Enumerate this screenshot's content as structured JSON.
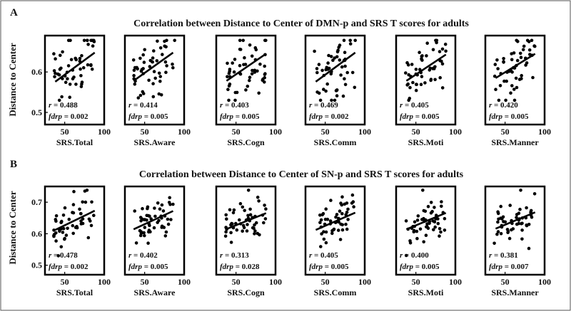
{
  "chart_data": [
    {
      "panel": "A",
      "type": "scatter",
      "title": "Correlation between Distance to Center of DMN-p and SRS T scores for adults",
      "ylabel": "Distance to Center",
      "ylim": [
        0.47,
        0.69
      ],
      "yticks": [
        0.5,
        0.6
      ],
      "xlim": [
        25,
        100
      ],
      "xticks": [
        50,
        100
      ],
      "subplots": [
        {
          "xlabel": "SRS.Total",
          "r_label": "r",
          "r_value": "= 0.488",
          "fdrp_label": "fdrp",
          "fdrp_value": "= 0.002",
          "fit": {
            "x": [
              38,
              88
            ],
            "y": [
              0.576,
              0.648
            ]
          }
        },
        {
          "xlabel": "SRS.Aware",
          "r_label": "r",
          "r_value": "= 0.414",
          "fdrp_label": "fdrp",
          "fdrp_value": "= 0.005",
          "fit": {
            "x": [
              36,
              86
            ],
            "y": [
              0.578,
              0.648
            ]
          }
        },
        {
          "xlabel": "SRS.Cogn",
          "r_label": "r",
          "r_value": "= 0.403",
          "fdrp_label": "fdrp",
          "fdrp_value": "= 0.005",
          "fit": {
            "x": [
              38,
              88
            ],
            "y": [
              0.578,
              0.645
            ]
          }
        },
        {
          "xlabel": "SRS.Comm",
          "r_label": "r",
          "r_value": "= 0.469",
          "fdrp_label": "fdrp",
          "fdrp_value": "= 0.002",
          "fit": {
            "x": [
              38,
              88
            ],
            "y": [
              0.576,
              0.648
            ]
          }
        },
        {
          "xlabel": "SRS.Moti",
          "r_label": "r",
          "r_value": "= 0.405",
          "fdrp_label": "fdrp",
          "fdrp_value": "= 0.005",
          "fit": {
            "x": [
              38,
              88
            ],
            "y": [
              0.578,
              0.643
            ]
          }
        },
        {
          "xlabel": "SRS.Manner",
          "r_label": "r",
          "r_value": "= 0.420",
          "fdrp_label": "fdrp",
          "fdrp_value": "= 0.005",
          "fit": {
            "x": [
              38,
              88
            ],
            "y": [
              0.585,
              0.645
            ]
          }
        }
      ]
    },
    {
      "panel": "B",
      "type": "scatter",
      "title": "Correlation between Distance to Center of SN-p and SRS T scores for adults",
      "ylabel": "Distance to Center",
      "ylim": [
        0.47,
        0.75
      ],
      "yticks": [
        0.5,
        0.6,
        0.7
      ],
      "xlim": [
        25,
        100
      ],
      "xticks": [
        50,
        100
      ],
      "subplots": [
        {
          "xlabel": "SRS.Total",
          "r_label": "r",
          "r_value": "= 0.478",
          "fdrp_label": "fdrp",
          "fdrp_value": "= 0.002",
          "fit": {
            "x": [
              38,
              88
            ],
            "y": [
              0.612,
              0.673
            ]
          }
        },
        {
          "xlabel": "SRS.Aware",
          "r_label": "r",
          "r_value": "= 0.402",
          "fdrp_label": "fdrp",
          "fdrp_value": "= 0.005",
          "fit": {
            "x": [
              36,
              86
            ],
            "y": [
              0.614,
              0.672
            ]
          }
        },
        {
          "xlabel": "SRS.Cogn",
          "r_label": "r",
          "r_value": "= 0.313",
          "fdrp_label": "fdrp",
          "fdrp_value": "= 0.028",
          "fit": {
            "x": [
              38,
              88
            ],
            "y": [
              0.615,
              0.665
            ]
          }
        },
        {
          "xlabel": "SRS.Comm",
          "r_label": "r",
          "r_value": "= 0.405",
          "fdrp_label": "fdrp",
          "fdrp_value": "= 0.005",
          "fit": {
            "x": [
              38,
              88
            ],
            "y": [
              0.612,
              0.667
            ]
          }
        },
        {
          "xlabel": "SRS.Moti",
          "r_label": "r",
          "r_value": "= 0.400",
          "fdrp_label": "fdrp",
          "fdrp_value": "= 0.005",
          "fit": {
            "x": [
              38,
              88
            ],
            "y": [
              0.614,
              0.666
            ]
          }
        },
        {
          "xlabel": "SRS.Manner",
          "r_label": "r",
          "r_value": "= 0.381",
          "fdrp_label": "fdrp",
          "fdrp_value": "= 0.007",
          "fit": {
            "x": [
              38,
              88
            ],
            "y": [
              0.616,
              0.668
            ]
          }
        }
      ]
    }
  ]
}
